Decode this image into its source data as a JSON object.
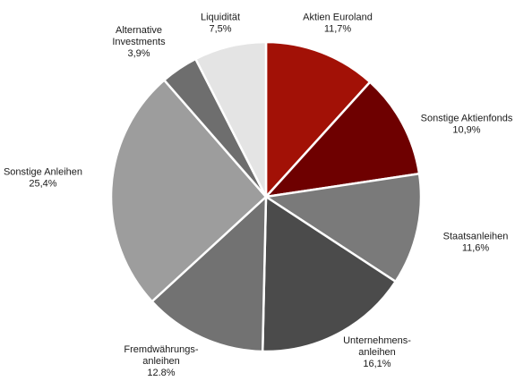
{
  "chart_data": {
    "type": "pie",
    "title": "",
    "start": "12 o'clock",
    "direction": "clockwise",
    "slices": [
      {
        "lines": [
          "Aktien Euroland",
          "11,7%"
        ],
        "value": 11.7,
        "color": "#a21106"
      },
      {
        "lines": [
          "Sonstige Aktienfonds",
          "10,9%"
        ],
        "value": 10.9,
        "color": "#6e0000"
      },
      {
        "lines": [
          "Staatsanleihen",
          "11,6%"
        ],
        "value": 11.6,
        "color": "#7a7a7a"
      },
      {
        "lines": [
          "Unternehmens-",
          "anleihen",
          "16,1%"
        ],
        "value": 16.1,
        "color": "#4b4b4b"
      },
      {
        "lines": [
          "Fremdwährungs-",
          "anleihen",
          "12.8%"
        ],
        "value": 12.8,
        "color": "#727272"
      },
      {
        "lines": [
          "Sonstige Anleihen",
          "25,4%"
        ],
        "value": 25.4,
        "color": "#9d9d9d"
      },
      {
        "lines": [
          "Alternative",
          "Investments",
          "3,9%"
        ],
        "value": 3.9,
        "color": "#6e6e6e"
      },
      {
        "lines": [
          "Liquidität",
          "7,5%"
        ],
        "value": 7.5,
        "color": "#e4e4e4"
      }
    ]
  }
}
